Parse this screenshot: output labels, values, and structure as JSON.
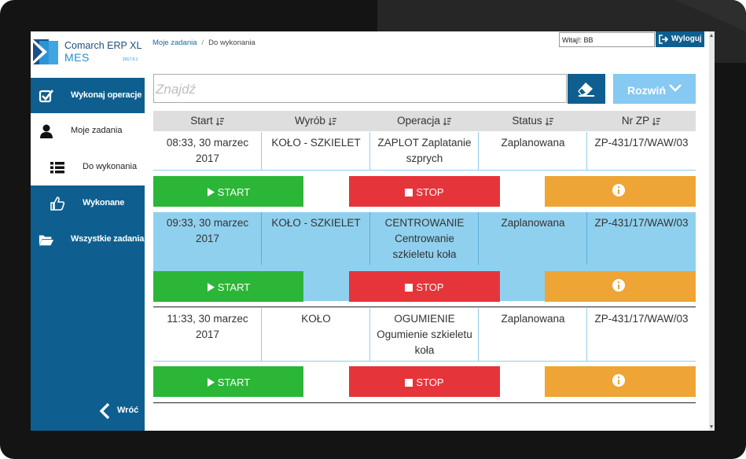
{
  "app": {
    "name": "Comarch ERP XL",
    "module": "MES",
    "version": "2017.0.1"
  },
  "sidebar": {
    "items": [
      {
        "label": "Wykonaj operacje",
        "icon": "checkbox-icon"
      },
      {
        "label": "Moje zadania",
        "icon": "user-icon"
      },
      {
        "label": "Do wykonania",
        "icon": "list-icon"
      },
      {
        "label": "Wykonane",
        "icon": "thumbs-up-icon"
      },
      {
        "label": "Wszystkie zadania",
        "icon": "folder-open-icon"
      }
    ],
    "back_label": "Wróć"
  },
  "breadcrumb": {
    "parent": "Moje zadania",
    "separator": "/",
    "current": "Do wykonania"
  },
  "header": {
    "welcome": "Witaj!: BB",
    "logout_label": "Wyloguj"
  },
  "search": {
    "placeholder": "Znajdź",
    "value": ""
  },
  "expand_label": "Rozwiń",
  "table": {
    "columns": [
      "Start",
      "Wyrób",
      "Operacja",
      "Status",
      "Nr ZP"
    ],
    "rows": [
      {
        "start": [
          "08:33, 30 marzec",
          "2017"
        ],
        "product": [
          "KOŁO - SZKIELET"
        ],
        "operation": [
          "ZAPLOT Zaplatanie",
          "szprych"
        ],
        "status": "Zaplanowana",
        "order": "ZP-431/17/WAW/03"
      },
      {
        "start": [
          "09:33, 30 marzec",
          "2017"
        ],
        "product": [
          "KOŁO - SZKIELET"
        ],
        "operation": [
          "CENTROWANIE",
          "Centrowanie",
          "szkieletu koła"
        ],
        "status": "Zaplanowana",
        "order": "ZP-431/17/WAW/03"
      },
      {
        "start": [
          "11:33, 30 marzec",
          "2017"
        ],
        "product": [
          "KOŁO"
        ],
        "operation": [
          "OGUMIENIE",
          "Ogumienie szkieletu",
          "koła"
        ],
        "status": "Zaplanowana",
        "order": "ZP-431/17/WAW/03"
      }
    ]
  },
  "actions": {
    "start_label": "START",
    "stop_label": "STOP"
  },
  "colors": {
    "brand": "#0e5f8f",
    "highlight_row": "#8fd0ef",
    "start": "#2cb637",
    "stop": "#e6353a",
    "info": "#eea536",
    "expand": "#86c9f2"
  }
}
